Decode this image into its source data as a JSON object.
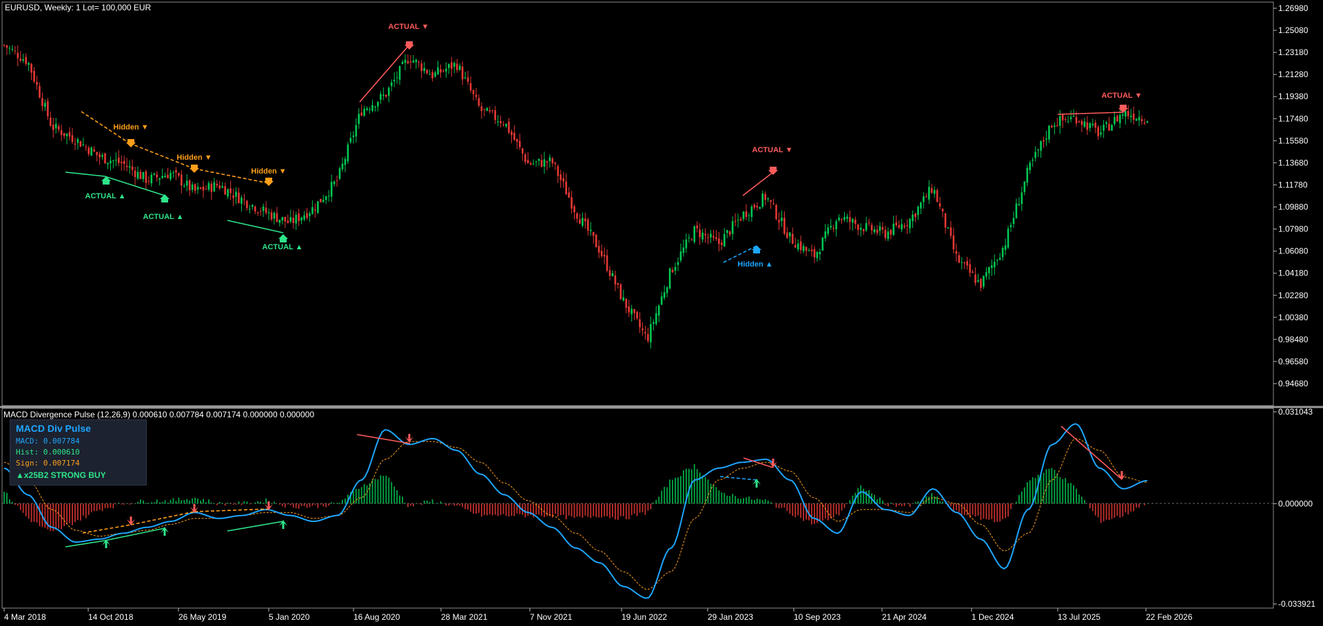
{
  "window": {
    "title": "EURUSD, Weekly:  1 Lot= 100,000 EUR",
    "indicator_title": "MACD Divergence Pulse (12,26,9) 0.000610 0.007784 0.007174 0.000000 0.000000"
  },
  "info_panel": {
    "title": "MACD Div Pulse",
    "macd": "MACD: 0.007784",
    "hist": "Hist: 0.000610",
    "sign": "Sign: 0.007174",
    "signal": "▲x25B2 STRONG BUY"
  },
  "colors": {
    "bull": "#00c853",
    "bear": "#e53935",
    "bull_label": "#2ee58a",
    "bear_label": "#ff5b5b",
    "hidden_bear": "#ff9f1a",
    "hidden_bull": "#1ea6ff",
    "macd_line": "#1ea6ff",
    "signal_line": "#ff9f1a",
    "grid_text": "#ffffff",
    "separator": "#9a9a9a"
  },
  "chart_data": [
    {
      "type": "candlestick",
      "title": "EURUSD, Weekly:  1 Lot= 100,000 EUR",
      "y_ticks": [
        "1.26980",
        "1.25080",
        "1.23180",
        "1.21280",
        "1.19380",
        "1.17480",
        "1.15580",
        "1.13680",
        "1.11780",
        "1.09880",
        "1.07980",
        "1.06080",
        "1.04180",
        "1.02280",
        "1.00380",
        "0.98480",
        "0.96580",
        "0.94680"
      ],
      "ylim": [
        0.942,
        1.272
      ],
      "x_ticks": [
        "4 Mar 2018",
        "14 Oct 2018",
        "26 May 2019",
        "5 Jan 2020",
        "16 Aug 2020",
        "28 Mar 2021",
        "7 Nov 2021",
        "19 Jun 2022",
        "29 Jan 2023",
        "10 Sep 2023",
        "21 Apr 2024",
        "1 Dec 2024",
        "13 Jul 2025",
        "22 Feb 2026"
      ],
      "series": [
        {
          "name": "close",
          "x": [
            "2018-03",
            "2018-05",
            "2018-07",
            "2018-10",
            "2018-12",
            "2019-02",
            "2019-04",
            "2019-06",
            "2019-08",
            "2019-10",
            "2019-12",
            "2020-02",
            "2020-03",
            "2020-05",
            "2020-07",
            "2020-09",
            "2020-11",
            "2021-01",
            "2021-03",
            "2021-05",
            "2021-07",
            "2021-09",
            "2021-11",
            "2022-01",
            "2022-03",
            "2022-05",
            "2022-07",
            "2022-09",
            "2022-11",
            "2023-01",
            "2023-03",
            "2023-05",
            "2023-07",
            "2023-09",
            "2023-11",
            "2024-01",
            "2024-03",
            "2024-05",
            "2024-07",
            "2024-09",
            "2024-11",
            "2025-01",
            "2025-03",
            "2025-05",
            "2025-07",
            "2025-09",
            "2025-11",
            "2026-01",
            "2026-03"
          ],
          "values": [
            1.238,
            1.224,
            1.168,
            1.157,
            1.142,
            1.136,
            1.122,
            1.128,
            1.112,
            1.118,
            1.105,
            1.094,
            1.085,
            1.098,
            1.122,
            1.182,
            1.195,
            1.228,
            1.212,
            1.222,
            1.182,
            1.172,
            1.136,
            1.138,
            1.095,
            1.062,
            1.018,
            0.985,
            1.044,
            1.079,
            1.067,
            1.092,
            1.108,
            1.072,
            1.056,
            1.091,
            1.082,
            1.076,
            1.087,
            1.116,
            1.054,
            1.032,
            1.066,
            1.13,
            1.171,
            1.176,
            1.162,
            1.18,
            1.175
          ]
        }
      ],
      "annotations": [
        {
          "text": "ACTUAL ▼",
          "kind": "actual_bear"
        },
        {
          "text": "Hidden ▼",
          "kind": "hidden_bear"
        },
        {
          "text": "Hidden ▼",
          "kind": "hidden_bear"
        },
        {
          "text": "Hidden ▼",
          "kind": "hidden_bear"
        },
        {
          "text": "ACTUAL ▲",
          "kind": "actual_bull"
        },
        {
          "text": "ACTUAL ▲",
          "kind": "actual_bull"
        },
        {
          "text": "ACTUAL ▲",
          "kind": "actual_bull"
        },
        {
          "text": "ACTUAL ▼",
          "kind": "actual_bear"
        },
        {
          "text": "Hidden ▲",
          "kind": "hidden_bull"
        },
        {
          "text": "ACTUAL ▼",
          "kind": "actual_bear"
        }
      ]
    },
    {
      "type": "line",
      "title": "MACD Divergence Pulse (12,26,9)",
      "y_ticks": [
        "0.031043",
        "0.000000",
        "-0.033921"
      ],
      "ylim": [
        -0.033921,
        0.031043
      ],
      "series": [
        {
          "name": "MACD",
          "values": [
            0.012,
            0.003,
            -0.008,
            -0.013,
            -0.012,
            -0.01,
            -0.008,
            -0.006,
            -0.003,
            -0.005,
            -0.004,
            -0.002,
            -0.004,
            -0.006,
            -0.004,
            0.008,
            0.025,
            0.02,
            0.022,
            0.018,
            0.01,
            0.003,
            -0.003,
            -0.008,
            -0.015,
            -0.02,
            -0.028,
            -0.032,
            -0.015,
            0.008,
            0.012,
            0.014,
            0.015,
            0.008,
            -0.005,
            -0.01,
            0.004,
            -0.002,
            -0.004,
            0.005,
            -0.003,
            -0.012,
            -0.022,
            -0.002,
            0.02,
            0.027,
            0.012,
            0.005,
            0.007784
          ]
        },
        {
          "name": "Signal",
          "values": [
            0.014,
            0.008,
            -0.002,
            -0.009,
            -0.011,
            -0.01,
            -0.009,
            -0.007,
            -0.005,
            -0.005,
            -0.004,
            -0.003,
            -0.003,
            -0.005,
            -0.004,
            0.002,
            0.015,
            0.021,
            0.021,
            0.019,
            0.014,
            0.007,
            0.001,
            -0.004,
            -0.01,
            -0.016,
            -0.023,
            -0.029,
            -0.023,
            -0.005,
            0.008,
            0.012,
            0.014,
            0.011,
            0.002,
            -0.006,
            -0.002,
            -0.002,
            -0.003,
            0.002,
            0.0,
            -0.007,
            -0.016,
            -0.01,
            0.008,
            0.022,
            0.018,
            0.009,
            0.007174
          ]
        },
        {
          "name": "Hist",
          "values": [
            0.004,
            -0.005,
            -0.01,
            -0.006,
            -0.002,
            0.0,
            0.001,
            0.001,
            0.002,
            0.0,
            0.0,
            0.001,
            -0.001,
            -0.001,
            0.0,
            0.006,
            0.01,
            -0.001,
            0.001,
            -0.001,
            -0.004,
            -0.004,
            -0.004,
            -0.004,
            -0.005,
            -0.004,
            -0.005,
            -0.003,
            0.008,
            0.013,
            0.004,
            0.002,
            0.001,
            -0.003,
            -0.007,
            -0.004,
            0.006,
            0.0,
            -0.001,
            0.003,
            -0.003,
            -0.005,
            -0.006,
            0.008,
            0.012,
            0.005,
            -0.006,
            -0.004,
            0.00061
          ]
        }
      ]
    }
  ]
}
